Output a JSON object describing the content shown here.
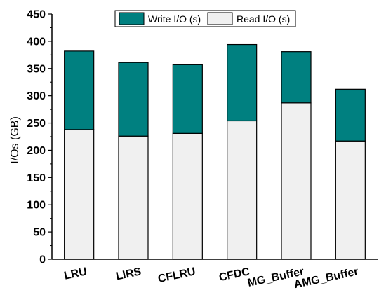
{
  "chart_data": {
    "type": "bar",
    "stacked": true,
    "categories": [
      "LRU",
      "LIRS",
      "CFLRU",
      "CFDC",
      "MG_Buffer",
      "AMG_Buffer"
    ],
    "series": [
      {
        "name": "Read I/O (s)",
        "values": [
          238,
          226,
          231,
          254,
          287,
          217
        ],
        "color": "#f0f0f0"
      },
      {
        "name": "Write I/O (s)",
        "values": [
          144,
          135,
          126,
          140,
          94,
          95
        ],
        "color": "#008080"
      }
    ],
    "ylabel": "I/Os (GB)",
    "xlabel": "",
    "ylim": [
      0,
      450
    ],
    "yticks": [
      0,
      50,
      100,
      150,
      200,
      250,
      300,
      350,
      400,
      450
    ],
    "grid": false,
    "legend": {
      "position": "top-right",
      "entries": [
        "Write I/O (s)",
        "Read I/O (s)"
      ]
    }
  }
}
